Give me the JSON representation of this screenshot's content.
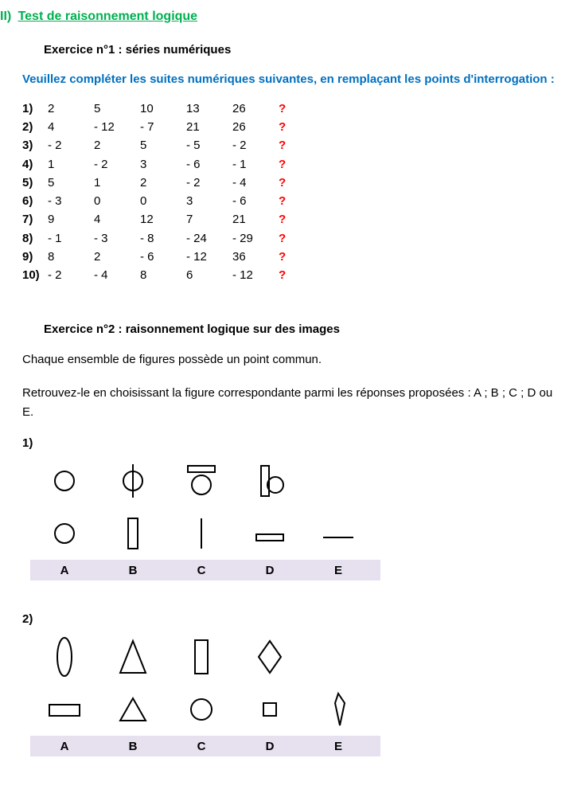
{
  "section": {
    "number": "II)",
    "title": "Test de raisonnement logique"
  },
  "ex1": {
    "title": "Exercice n°1 : séries numériques",
    "instruction": "Veuillez compléter les suites numériques suivantes, en remplaçant les points d'interrogation :",
    "rows": [
      {
        "label": "1)",
        "vals": [
          "2",
          "5",
          "10",
          "13",
          "26"
        ],
        "q": "?"
      },
      {
        "label": "2)",
        "vals": [
          "4",
          "- 12",
          "- 7",
          "21",
          "26"
        ],
        "q": "?"
      },
      {
        "label": "3)",
        "vals": [
          "- 2",
          "2",
          "5",
          "- 5",
          "- 2"
        ],
        "q": "?"
      },
      {
        "label": "4)",
        "vals": [
          "1",
          "- 2",
          "3",
          "- 6",
          "- 1"
        ],
        "q": "?"
      },
      {
        "label": "5)",
        "vals": [
          "5",
          "1",
          "2",
          "- 2",
          "- 4"
        ],
        "q": "?"
      },
      {
        "label": "6)",
        "vals": [
          "- 3",
          "0",
          "0",
          "3",
          "- 6"
        ],
        "q": "?"
      },
      {
        "label": "7)",
        "vals": [
          "9",
          "4",
          "12",
          "7",
          "21"
        ],
        "q": "?"
      },
      {
        "label": "8)",
        "vals": [
          "- 1",
          "- 3",
          "- 8",
          "- 24",
          "- 29"
        ],
        "q": "?"
      },
      {
        "label": "9)",
        "vals": [
          "8",
          "2",
          "- 6",
          "- 12",
          "36"
        ],
        "q": "?"
      },
      {
        "label": "10)",
        "vals": [
          "- 2",
          "- 4",
          "8",
          "6",
          "- 12"
        ],
        "q": "?"
      }
    ]
  },
  "ex2": {
    "title": "Exercice n°2 : raisonnement logique sur des images",
    "intro1": "Chaque ensemble de figures possède un point commun.",
    "intro2": "Retrouvez-le en choisissant la figure correspondante parmi les réponses proposées : A ; B ; C ; D ou E.",
    "options": [
      "A",
      "B",
      "C",
      "D",
      "E"
    ],
    "questions": [
      {
        "num": "1)"
      },
      {
        "num": "2)"
      }
    ],
    "colors": {
      "option_bg": "#e6e0ef",
      "stroke": "#000000"
    }
  }
}
